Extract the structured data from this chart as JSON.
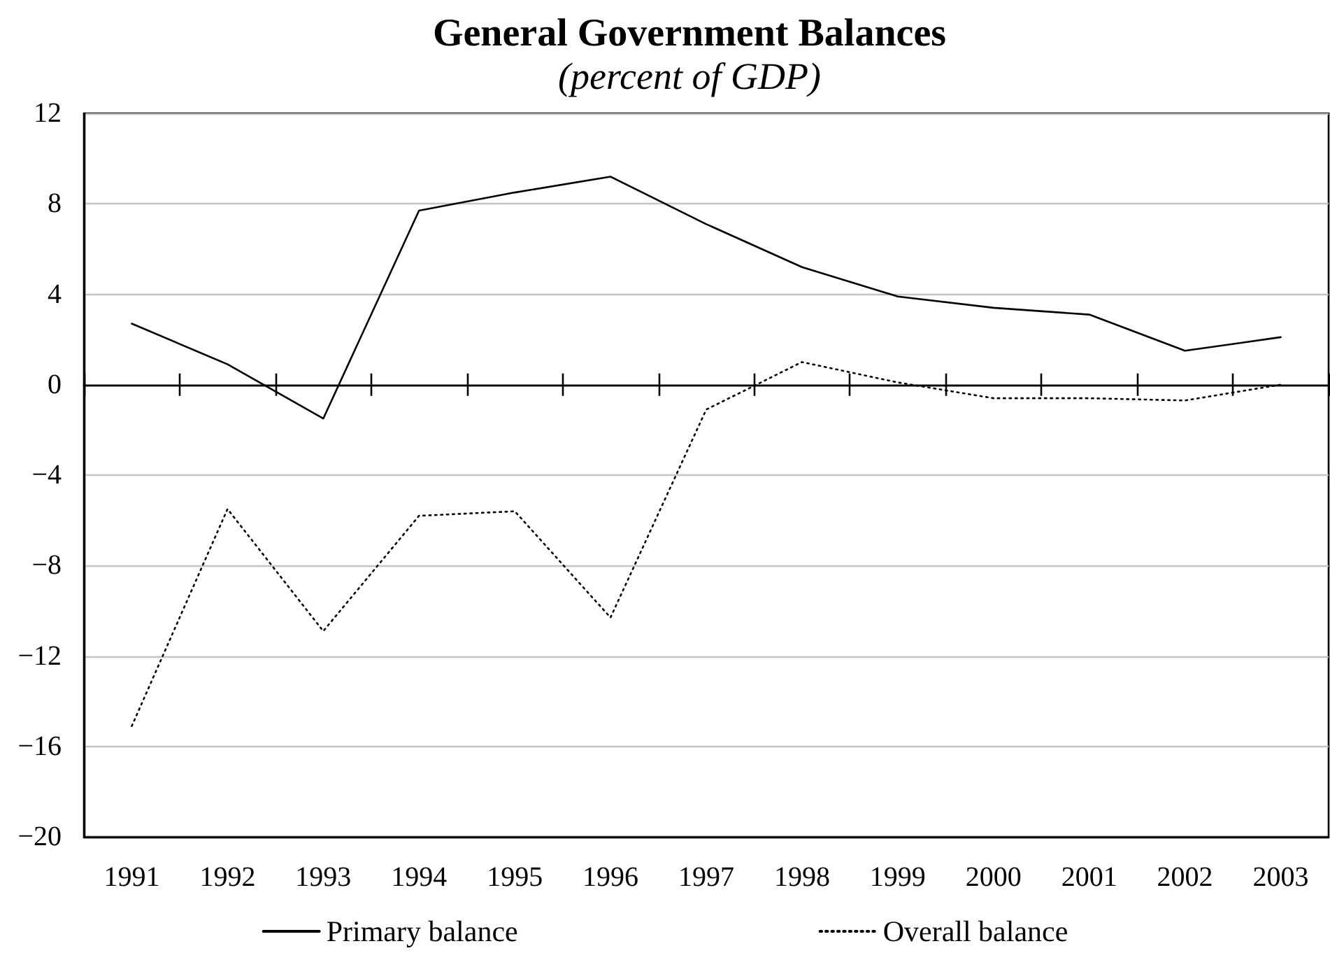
{
  "chart_data": {
    "type": "line",
    "title": "General Government Balances",
    "subtitle": "(percent of GDP)",
    "categories": [
      "1991",
      "1992",
      "1993",
      "1994",
      "1995",
      "1996",
      "1997",
      "1998",
      "1999",
      "2000",
      "2001",
      "2002",
      "2003"
    ],
    "series": [
      {
        "name": "Primary balance",
        "color": "#000000",
        "line_style": "solid",
        "values": [
          2.7,
          0.9,
          -1.5,
          7.7,
          8.5,
          9.2,
          7.1,
          5.2,
          3.9,
          3.4,
          3.1,
          1.5,
          2.1
        ]
      },
      {
        "name": "Overall balance",
        "color": "#000000",
        "line_style": "dotted",
        "values": [
          -15.1,
          -5.5,
          -10.9,
          -5.8,
          -5.6,
          -10.3,
          -1.1,
          1.0,
          0.1,
          -0.6,
          -0.6,
          -0.7,
          0.0
        ]
      }
    ],
    "ylim": [
      -20,
      12
    ],
    "yticks": [
      -20,
      -16,
      -12,
      -8,
      -4,
      0,
      4,
      8,
      12
    ],
    "grid": "y",
    "legend": "bottom",
    "marker": "none"
  }
}
